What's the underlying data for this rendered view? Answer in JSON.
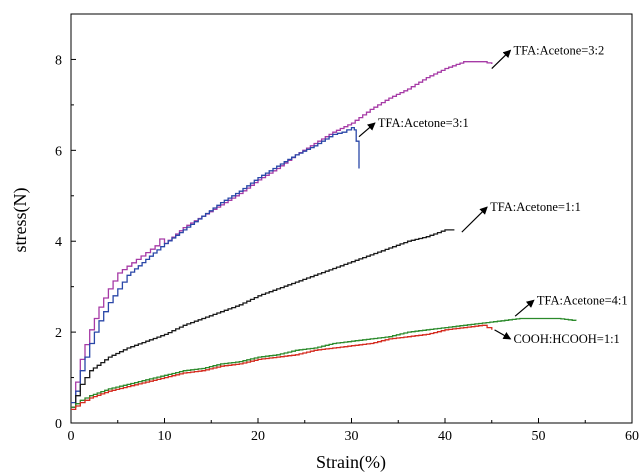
{
  "chart_data": {
    "type": "line",
    "xlabel": "Strain(%)",
    "ylabel": "stress(N)",
    "xlim": [
      0,
      60
    ],
    "ylim": [
      0,
      9
    ],
    "xticks": [
      0,
      10,
      20,
      30,
      40,
      50,
      60
    ],
    "yticks": [
      0,
      2,
      4,
      6,
      8
    ],
    "grid": false,
    "legend": "none",
    "series": [
      {
        "name": "TFA:Acetone=3:2",
        "color": "#a63aa6",
        "x": [
          0,
          0.5,
          1,
          2,
          3,
          4,
          5,
          6,
          7,
          8,
          9,
          9.5,
          10,
          12,
          14,
          16,
          18,
          20,
          22,
          24,
          26,
          28,
          30,
          32,
          34,
          36,
          38,
          40,
          42,
          43,
          44,
          45
        ],
        "y": [
          0.35,
          0.9,
          1.4,
          2.05,
          2.55,
          2.95,
          3.3,
          3.45,
          3.6,
          3.75,
          3.9,
          4.05,
          3.95,
          4.3,
          4.55,
          4.8,
          5.05,
          5.35,
          5.6,
          5.9,
          6.15,
          6.4,
          6.6,
          6.9,
          7.15,
          7.35,
          7.6,
          7.8,
          7.95,
          7.95,
          7.95,
          7.9
        ]
      },
      {
        "name": "TFA:Acetone=3:1",
        "color": "#2a47a8",
        "x": [
          0,
          0.5,
          1,
          2,
          3,
          4,
          5,
          6,
          8,
          10,
          12,
          14,
          16,
          18,
          20,
          22,
          24,
          26,
          28,
          29,
          30,
          30.3,
          30.5,
          30.8
        ],
        "y": [
          0.45,
          0.7,
          1.15,
          1.75,
          2.25,
          2.65,
          2.95,
          3.25,
          3.6,
          3.95,
          4.25,
          4.55,
          4.85,
          5.1,
          5.4,
          5.65,
          5.9,
          6.1,
          6.35,
          6.4,
          6.5,
          6.45,
          6.2,
          5.6
        ]
      },
      {
        "name": "TFA:Acetone=1:1",
        "color": "#1a1a1a",
        "x": [
          0,
          0.5,
          1,
          2,
          4,
          6,
          8,
          10,
          12,
          14,
          16,
          18,
          20,
          22,
          24,
          26,
          28,
          30,
          32,
          34,
          36,
          38,
          40,
          41
        ],
        "y": [
          0.35,
          0.6,
          0.85,
          1.15,
          1.45,
          1.65,
          1.8,
          1.95,
          2.15,
          2.3,
          2.45,
          2.6,
          2.8,
          2.95,
          3.1,
          3.25,
          3.4,
          3.55,
          3.7,
          3.85,
          4.0,
          4.1,
          4.25,
          4.25
        ]
      },
      {
        "name": "TFA:Acetone=4:1",
        "color": "#2b8a2b",
        "x": [
          0,
          1,
          2,
          4,
          6,
          8,
          10,
          12,
          14,
          16,
          18,
          20,
          22,
          24,
          26,
          28,
          30,
          32,
          34,
          36,
          38,
          40,
          42,
          44,
          46,
          48,
          50,
          52,
          54
        ],
        "y": [
          0.35,
          0.5,
          0.6,
          0.75,
          0.85,
          0.95,
          1.05,
          1.15,
          1.2,
          1.3,
          1.35,
          1.45,
          1.5,
          1.6,
          1.65,
          1.75,
          1.8,
          1.85,
          1.9,
          2.0,
          2.05,
          2.1,
          2.15,
          2.2,
          2.25,
          2.3,
          2.3,
          2.3,
          2.25
        ]
      },
      {
        "name": "COOH:HCOOH=1:1",
        "color": "#d42a1e",
        "x": [
          0,
          1,
          2,
          4,
          6,
          8,
          10,
          12,
          14,
          16,
          18,
          20,
          22,
          24,
          26,
          28,
          30,
          32,
          34,
          36,
          38,
          40,
          42,
          44,
          45
        ],
        "y": [
          0.3,
          0.45,
          0.55,
          0.7,
          0.8,
          0.9,
          1.0,
          1.1,
          1.15,
          1.25,
          1.3,
          1.4,
          1.45,
          1.5,
          1.6,
          1.65,
          1.7,
          1.75,
          1.85,
          1.9,
          1.95,
          2.05,
          2.1,
          2.15,
          2.05
        ]
      }
    ],
    "annotations": [
      {
        "text": "TFA:Acetone=3:2",
        "series": "TFA:Acetone=3:2",
        "from": [
          45.0,
          7.8
        ],
        "to": [
          47.0,
          8.2
        ]
      },
      {
        "text": "TFA:Acetone=3:1",
        "series": "TFA:Acetone=3:1",
        "from": [
          30.8,
          6.3
        ],
        "to": [
          32.5,
          6.6
        ]
      },
      {
        "text": "TFA:Acetone=1:1",
        "series": "TFA:Acetone=1:1",
        "from": [
          41.8,
          4.2
        ],
        "to": [
          44.5,
          4.75
        ]
      },
      {
        "text": "TFA:Acetone=4:1",
        "series": "TFA:Acetone=4:1",
        "from": [
          47.5,
          2.35
        ],
        "to": [
          49.5,
          2.7
        ]
      },
      {
        "text": "COOH:HCOOH=1:1",
        "series": "COOH:HCOOH=1:1",
        "from": [
          45.3,
          2.05
        ],
        "to": [
          47.0,
          1.85
        ]
      }
    ]
  }
}
